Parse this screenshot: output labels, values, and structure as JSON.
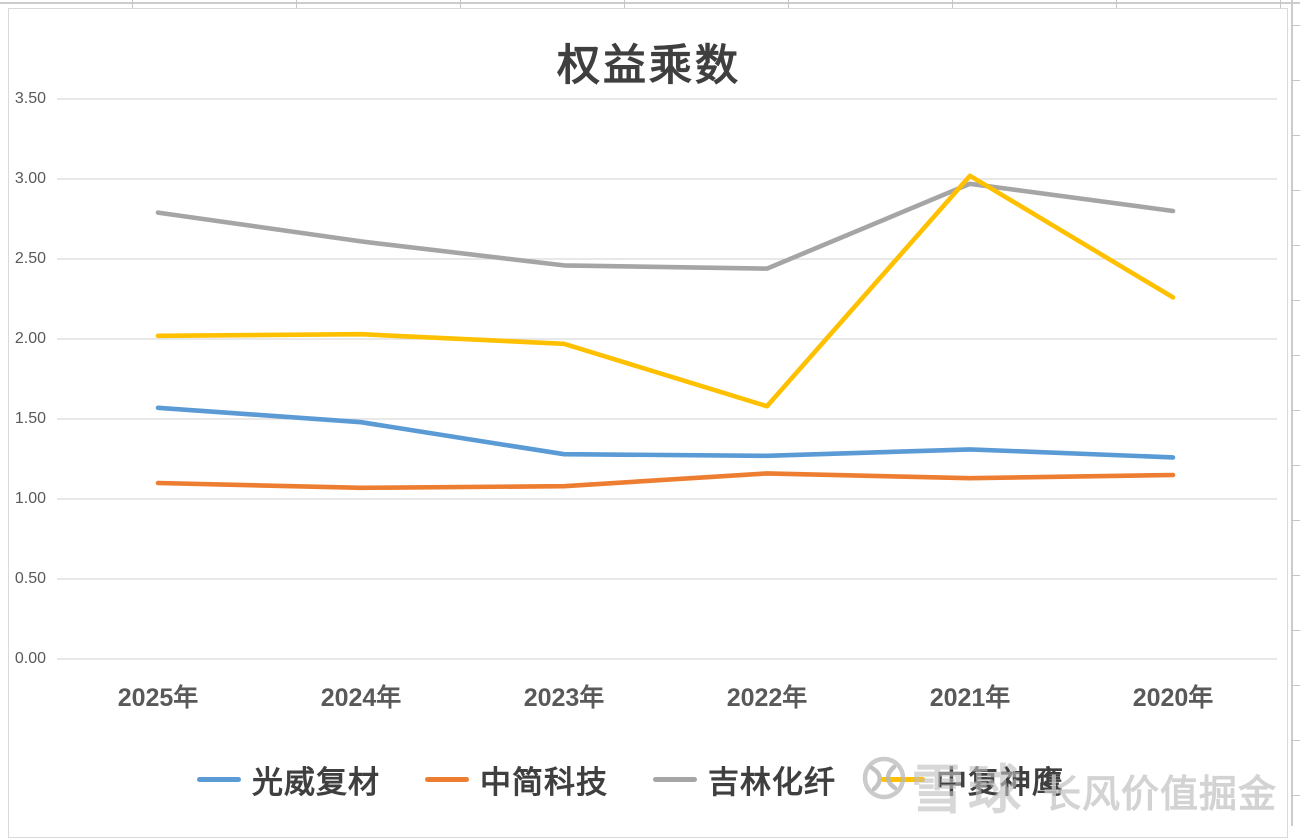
{
  "chart_data": {
    "type": "line",
    "title": "权益乘数",
    "categories": [
      "2025年",
      "2024年",
      "2023年",
      "2022年",
      "2021年",
      "2020年"
    ],
    "series": [
      {
        "name": "光威复材",
        "color": "#5B9BD5",
        "values": [
          1.57,
          1.48,
          1.28,
          1.27,
          1.31,
          1.26
        ]
      },
      {
        "name": "中简科技",
        "color": "#ED7D31",
        "values": [
          1.1,
          1.07,
          1.08,
          1.16,
          1.13,
          1.15
        ]
      },
      {
        "name": "吉林化纤",
        "color": "#A5A5A5",
        "values": [
          2.79,
          2.61,
          2.46,
          2.44,
          2.97,
          2.8
        ]
      },
      {
        "name": "中复神鹰",
        "color": "#FFC000",
        "values": [
          2.02,
          2.03,
          1.97,
          1.58,
          3.02,
          2.26
        ]
      }
    ],
    "xlabel": "",
    "ylabel": "",
    "ylim": [
      0,
      3.5
    ],
    "y_ticks": [
      {
        "label": "0.00",
        "value": 0.0
      },
      {
        "label": "0.50",
        "value": 0.5
      },
      {
        "label": "1.00",
        "value": 1.0
      },
      {
        "label": "1.50",
        "value": 1.5
      },
      {
        "label": "2.00",
        "value": 2.0
      },
      {
        "label": "2.50",
        "value": 2.5
      },
      {
        "label": "3.00",
        "value": 3.0
      },
      {
        "label": "3.50",
        "value": 3.5
      }
    ],
    "grid": true,
    "legend_position": "bottom",
    "axis_text_color": "#595959",
    "grid_color": "#D9D9D9"
  },
  "watermark": {
    "logo": "xueqiu-logo",
    "brand": "雪球",
    "text": "长风价值掘金"
  }
}
